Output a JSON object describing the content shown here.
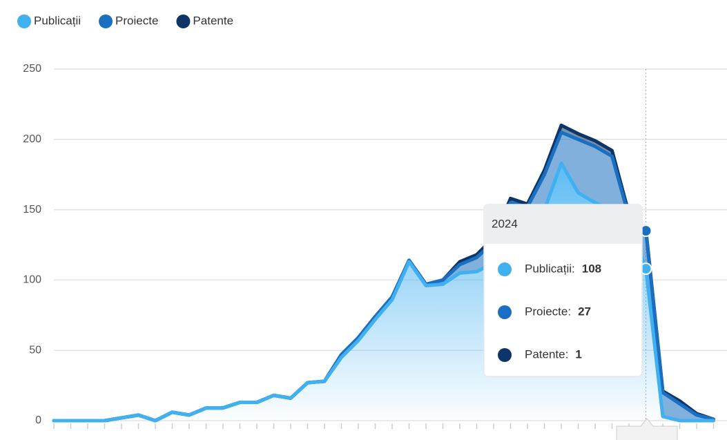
{
  "chart_data": {
    "type": "stacked-area",
    "categories": [
      null,
      null,
      null,
      null,
      null,
      null,
      null,
      null,
      null,
      null,
      null,
      null,
      null,
      null,
      null,
      null,
      null,
      null,
      null,
      null,
      null,
      null,
      null,
      null,
      null,
      null,
      null,
      null,
      null,
      null,
      null,
      null,
      null,
      null,
      null,
      "2024",
      null,
      null,
      null,
      null
    ],
    "series": [
      {
        "name": "Publicații",
        "color": "#41b0f0",
        "values": [
          0,
          0,
          0,
          0,
          2,
          4,
          0,
          6,
          4,
          9,
          9,
          13,
          13,
          18,
          16,
          27,
          28,
          45,
          57,
          72,
          86,
          113,
          96,
          97,
          105,
          106,
          112,
          125,
          135,
          150,
          183,
          162,
          155,
          150,
          140,
          108,
          3,
          0,
          0,
          0
        ]
      },
      {
        "name": "Proiecte",
        "color": "#1a6fc0",
        "values": [
          0,
          0,
          0,
          0,
          0,
          0,
          0,
          0,
          0,
          0,
          0,
          0,
          0,
          0,
          0,
          0,
          0,
          2,
          2,
          2,
          2,
          1,
          1,
          3,
          6,
          10,
          15,
          30,
          17,
          25,
          22,
          38,
          40,
          38,
          5,
          27,
          17,
          12,
          4,
          1
        ]
      },
      {
        "name": "Patente",
        "color": "#0d3567",
        "values": [
          0,
          0,
          0,
          0,
          0,
          0,
          0,
          0,
          0,
          0,
          0,
          0,
          0,
          0,
          0,
          0,
          0,
          0,
          0,
          0,
          0,
          0,
          0,
          0,
          2,
          2,
          3,
          3,
          2,
          3,
          5,
          4,
          4,
          4,
          2,
          1,
          1,
          2,
          1,
          0
        ]
      }
    ],
    "ylim": [
      0,
      250
    ],
    "yticks": [
      0,
      50,
      100,
      150,
      200,
      250
    ],
    "grid": true,
    "tooltip": {
      "index": 35,
      "labels": [
        "Publicații:",
        "Proiecte:",
        "Patente:"
      ]
    }
  }
}
